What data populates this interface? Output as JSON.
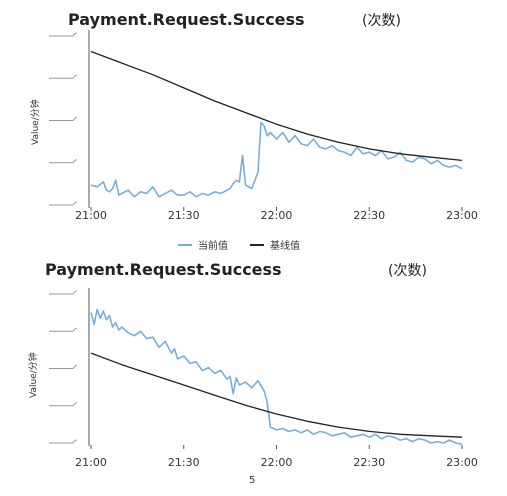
{
  "colors": {
    "current": "#7aaed6",
    "baseline": "#222222",
    "axis": "#555555"
  },
  "legend": {
    "current_label": "当前值",
    "baseline_label": "基线值"
  },
  "page_number": "5",
  "chart_data": [
    {
      "type": "line",
      "title": "Payment.Request.Success",
      "unit": "(次数)",
      "ylabel": "Value/分钟",
      "xlabel": "",
      "x_tick_labels": [
        "21:00",
        "21:30",
        "22:00",
        "22:30",
        "23:00"
      ],
      "x_ticks_min": [
        0,
        30,
        60,
        90,
        120
      ],
      "xlim_min": [
        0,
        120
      ],
      "ylim": [
        0,
        100
      ],
      "grid": false,
      "legend_position": "bottom",
      "series": [
        {
          "name": "当前值",
          "color_key": "current",
          "x": [
            0,
            2,
            4,
            5,
            6,
            7,
            8,
            9,
            10,
            12,
            14,
            16,
            18,
            20,
            22,
            24,
            26,
            28,
            30,
            32,
            34,
            36,
            38,
            40,
            42,
            44,
            45,
            46,
            47,
            48,
            49,
            50,
            52,
            54,
            55,
            56,
            57,
            58,
            60,
            62,
            64,
            66,
            68,
            70,
            72,
            74,
            76,
            78,
            80,
            82,
            84,
            86,
            88,
            90,
            92,
            94,
            96,
            98,
            100,
            102,
            104,
            106,
            108,
            110,
            112,
            114,
            116,
            118,
            120
          ],
          "y": [
            12,
            11,
            14,
            9,
            8,
            10,
            15,
            6,
            7,
            9,
            5,
            8,
            7,
            11,
            5,
            7,
            9,
            6,
            6,
            8,
            5,
            7,
            6,
            8,
            7,
            9,
            10,
            13,
            15,
            14,
            30,
            12,
            10,
            20,
            50,
            48,
            42,
            44,
            40,
            44,
            38,
            42,
            37,
            36,
            40,
            35,
            34,
            36,
            33,
            32,
            30,
            35,
            31,
            32,
            30,
            33,
            28,
            29,
            32,
            27,
            26,
            29,
            28,
            25,
            27,
            24,
            23,
            24,
            22
          ]
        },
        {
          "name": "基线值",
          "color_key": "baseline",
          "x": [
            0,
            10,
            20,
            30,
            40,
            50,
            60,
            70,
            80,
            90,
            100,
            110,
            120
          ],
          "y": [
            93,
            86,
            79,
            71,
            63,
            56,
            49,
            43,
            38,
            34,
            31,
            29,
            27
          ]
        }
      ]
    },
    {
      "type": "line",
      "title": "Payment.Request.Success",
      "unit": "(次数)",
      "ylabel": "Value/分钟",
      "xlabel": "",
      "x_tick_labels": [
        "21:00",
        "21:30",
        "22:00",
        "22:30",
        "23:00"
      ],
      "x_ticks_min": [
        0,
        30,
        60,
        90,
        120
      ],
      "xlim_min": [
        0,
        120
      ],
      "ylim": [
        0,
        100
      ],
      "grid": false,
      "legend_position": "none",
      "series": [
        {
          "name": "当前值",
          "color_key": "current",
          "x": [
            0,
            1,
            2,
            3,
            4,
            5,
            6,
            7,
            8,
            9,
            10,
            12,
            14,
            16,
            18,
            20,
            22,
            24,
            26,
            27,
            28,
            30,
            32,
            34,
            36,
            38,
            40,
            42,
            44,
            45,
            46,
            47,
            48,
            50,
            52,
            54,
            56,
            57,
            58,
            60,
            62,
            64,
            66,
            68,
            70,
            72,
            74,
            76,
            78,
            80,
            82,
            84,
            86,
            88,
            90,
            92,
            94,
            96,
            98,
            100,
            102,
            104,
            106,
            108,
            110,
            112,
            114,
            116,
            118,
            120
          ],
          "y": [
            90,
            82,
            92,
            86,
            91,
            85,
            88,
            80,
            83,
            78,
            80,
            76,
            74,
            77,
            72,
            73,
            66,
            70,
            62,
            65,
            58,
            60,
            55,
            56,
            50,
            52,
            48,
            50,
            44,
            46,
            34,
            45,
            40,
            42,
            38,
            43,
            36,
            28,
            11,
            9,
            10,
            8,
            9,
            7,
            9,
            6,
            8,
            7,
            5,
            6,
            7,
            4,
            5,
            6,
            4,
            6,
            3,
            5,
            4,
            2,
            3,
            1,
            3,
            2,
            0,
            1,
            0,
            2,
            0,
            -1
          ]
        },
        {
          "name": "基线值",
          "color_key": "baseline",
          "x": [
            0,
            10,
            20,
            30,
            40,
            50,
            60,
            70,
            80,
            90,
            100,
            110,
            120
          ],
          "y": [
            62,
            54,
            47,
            40,
            33,
            26,
            20,
            15,
            11,
            8,
            6,
            5,
            4
          ]
        }
      ]
    }
  ]
}
